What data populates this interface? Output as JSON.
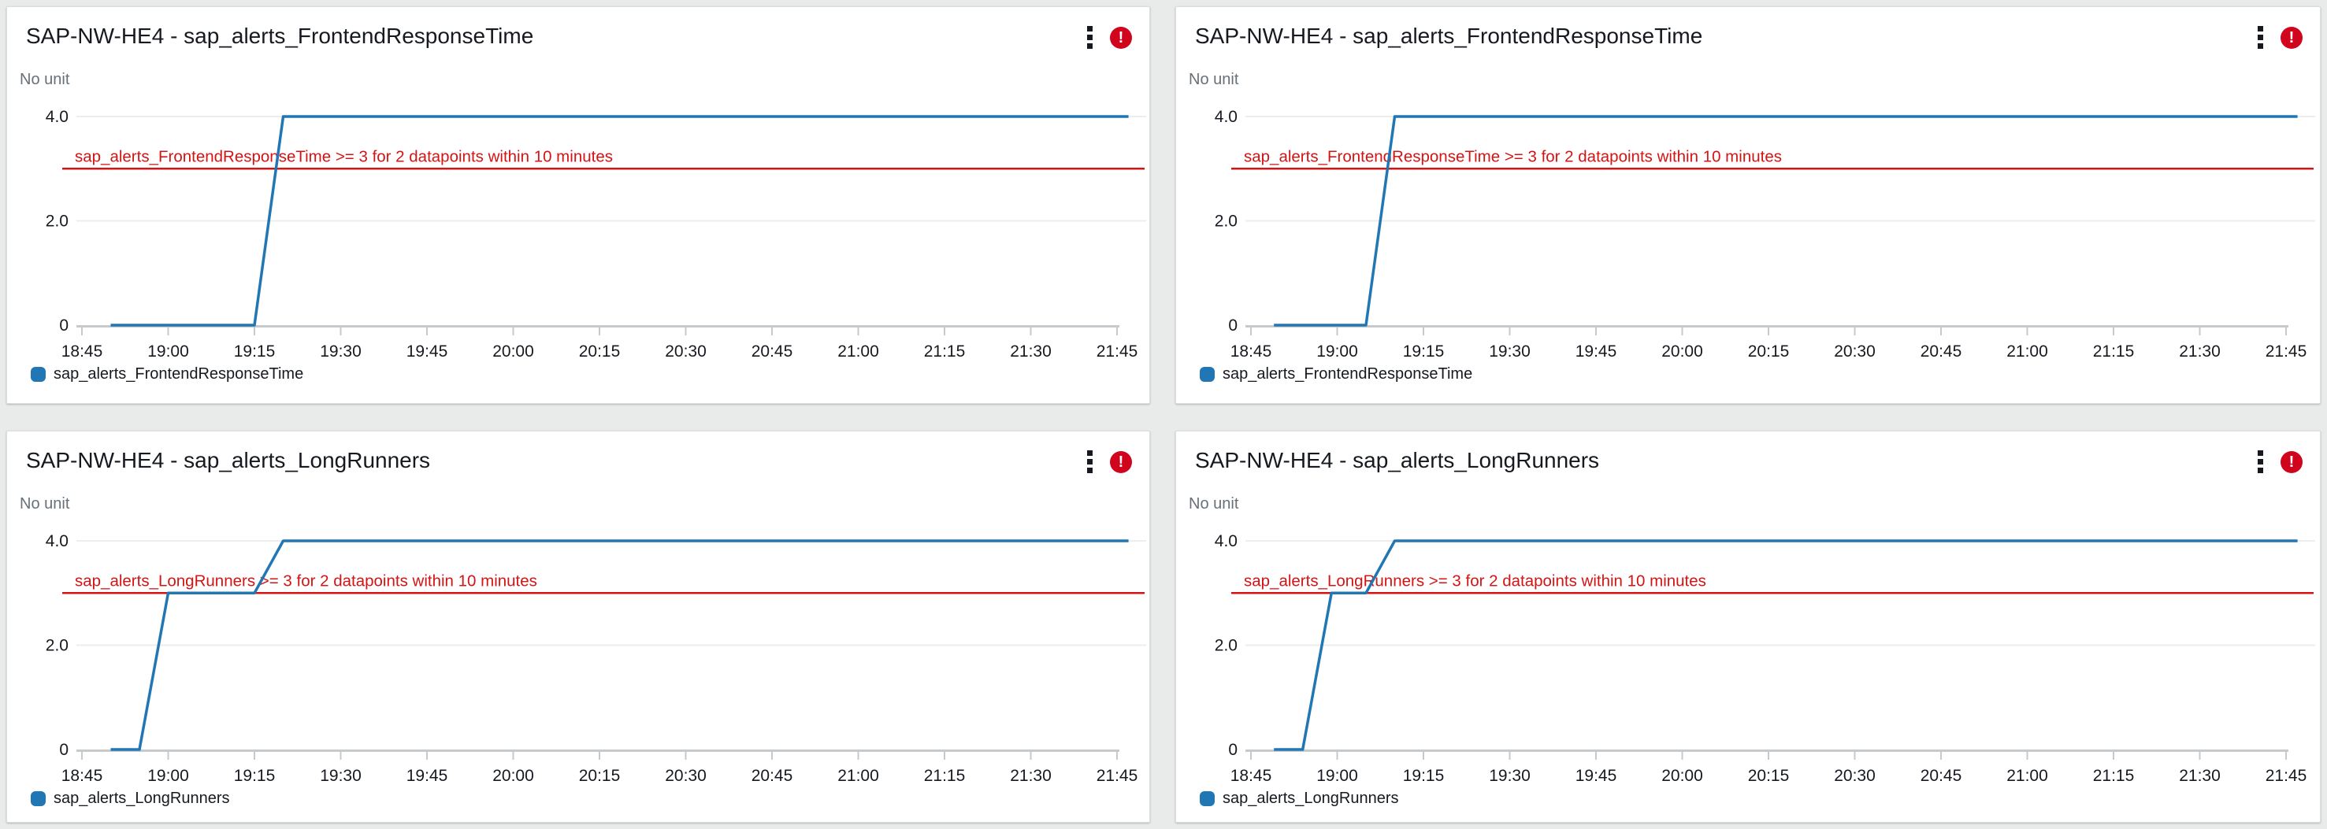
{
  "colors": {
    "page_background": "#e9ebeb",
    "panel_background": "#ffffff",
    "series_blue": "#2077b4",
    "threshold_red": "#d41414",
    "alarm_badge_red": "#d1041d",
    "grid_line": "#ededed",
    "axis_line": "#c7cacc",
    "title_text": "#16191f",
    "muted_text": "#687078"
  },
  "panels": [
    {
      "title": "SAP-NW-HE4 - sap_alerts_FrontendResponseTime",
      "unit_label": "No unit",
      "menu_icon": "kebab-menu-icon",
      "alarm_icon": "alarm-exclamation-icon",
      "alarm_glyph": "!",
      "legend_label": "sap_alerts_FrontendResponseTime"
    },
    {
      "title": "SAP-NW-HE4 - sap_alerts_FrontendResponseTime",
      "unit_label": "No unit",
      "menu_icon": "kebab-menu-icon",
      "alarm_icon": "alarm-exclamation-icon",
      "alarm_glyph": "!",
      "legend_label": "sap_alerts_FrontendResponseTime"
    },
    {
      "title": "SAP-NW-HE4 - sap_alerts_LongRunners",
      "unit_label": "No unit",
      "menu_icon": "kebab-menu-icon",
      "alarm_icon": "alarm-exclamation-icon",
      "alarm_glyph": "!",
      "legend_label": "sap_alerts_LongRunners"
    },
    {
      "title": "SAP-NW-HE4 - sap_alerts_LongRunners",
      "unit_label": "No unit",
      "menu_icon": "kebab-menu-icon",
      "alarm_icon": "alarm-exclamation-icon",
      "alarm_glyph": "!",
      "legend_label": "sap_alerts_LongRunners"
    }
  ],
  "chart_data": [
    {
      "type": "line",
      "title": "SAP-NW-HE4 - sap_alerts_FrontendResponseTime",
      "ylabel": "No unit",
      "ylim": [
        0,
        4.45
      ],
      "x_start_time": "18:45",
      "x_tick_interval_minutes": 15,
      "x_ticks": [
        "18:45",
        "19:00",
        "19:15",
        "19:30",
        "19:45",
        "20:00",
        "20:15",
        "20:30",
        "20:45",
        "21:00",
        "21:15",
        "21:30",
        "21:45"
      ],
      "y_tick_labels": [
        {
          "v": 0,
          "label": "0"
        },
        {
          "v": 2,
          "label": "2.0"
        },
        {
          "v": 4,
          "label": "4.0"
        }
      ],
      "grid_values": [
        2,
        4
      ],
      "threshold": {
        "value": 3,
        "label": "sap_alerts_FrontendResponseTime >= 3 for 2 datapoints within 10 minutes"
      },
      "series": [
        {
          "name": "sap_alerts_FrontendResponseTime",
          "color": "#2077b4",
          "points_minutes_value": [
            [
              5,
              0
            ],
            [
              30,
              0
            ],
            [
              35,
              4
            ],
            [
              182,
              4
            ]
          ],
          "points_time_value": [
            [
              "18:50",
              0
            ],
            [
              "19:15",
              0
            ],
            [
              "19:20",
              4
            ],
            [
              "21:47",
              4
            ]
          ]
        }
      ],
      "legend_position": "bottom"
    },
    {
      "type": "line",
      "title": "SAP-NW-HE4 - sap_alerts_FrontendResponseTime",
      "ylabel": "No unit",
      "ylim": [
        0,
        4.45
      ],
      "x_start_time": "18:45",
      "x_tick_interval_minutes": 15,
      "x_ticks": [
        "18:45",
        "19:00",
        "19:15",
        "19:30",
        "19:45",
        "20:00",
        "20:15",
        "20:30",
        "20:45",
        "21:00",
        "21:15",
        "21:30",
        "21:45"
      ],
      "y_tick_labels": [
        {
          "v": 0,
          "label": "0"
        },
        {
          "v": 2,
          "label": "2.0"
        },
        {
          "v": 4,
          "label": "4.0"
        }
      ],
      "grid_values": [
        2,
        4
      ],
      "threshold": {
        "value": 3,
        "label": "sap_alerts_FrontendResponseTime >= 3 for 2 datapoints within 10 minutes"
      },
      "series": [
        {
          "name": "sap_alerts_FrontendResponseTime",
          "color": "#2077b4",
          "points_minutes_value": [
            [
              4,
              0
            ],
            [
              20,
              0
            ],
            [
              25,
              4
            ],
            [
              182,
              4
            ]
          ],
          "points_time_value": [
            [
              "18:49",
              0
            ],
            [
              "19:05",
              0
            ],
            [
              "19:10",
              4
            ],
            [
              "21:47",
              4
            ]
          ]
        }
      ],
      "legend_position": "bottom"
    },
    {
      "type": "line",
      "title": "SAP-NW-HE4 - sap_alerts_LongRunners",
      "ylabel": "No unit",
      "ylim": [
        0,
        4.45
      ],
      "x_start_time": "18:45",
      "x_tick_interval_minutes": 15,
      "x_ticks": [
        "18:45",
        "19:00",
        "19:15",
        "19:30",
        "19:45",
        "20:00",
        "20:15",
        "20:30",
        "20:45",
        "21:00",
        "21:15",
        "21:30",
        "21:45"
      ],
      "y_tick_labels": [
        {
          "v": 0,
          "label": "0"
        },
        {
          "v": 2,
          "label": "2.0"
        },
        {
          "v": 4,
          "label": "4.0"
        }
      ],
      "grid_values": [
        2,
        4
      ],
      "threshold": {
        "value": 3,
        "label": "sap_alerts_LongRunners >= 3 for 2 datapoints within 10 minutes"
      },
      "series": [
        {
          "name": "sap_alerts_LongRunners",
          "color": "#2077b4",
          "points_minutes_value": [
            [
              5,
              0
            ],
            [
              10,
              0
            ],
            [
              15,
              3
            ],
            [
              30,
              3
            ],
            [
              35,
              4
            ],
            [
              182,
              4
            ]
          ],
          "points_time_value": [
            [
              "18:50",
              0
            ],
            [
              "18:55",
              0
            ],
            [
              "19:00",
              3
            ],
            [
              "19:15",
              3
            ],
            [
              "19:20",
              4
            ],
            [
              "21:47",
              4
            ]
          ]
        }
      ],
      "legend_position": "bottom"
    },
    {
      "type": "line",
      "title": "SAP-NW-HE4 - sap_alerts_LongRunners",
      "ylabel": "No unit",
      "ylim": [
        0,
        4.45
      ],
      "x_start_time": "18:45",
      "x_tick_interval_minutes": 15,
      "x_ticks": [
        "18:45",
        "19:00",
        "19:15",
        "19:30",
        "19:45",
        "20:00",
        "20:15",
        "20:30",
        "20:45",
        "21:00",
        "21:15",
        "21:30",
        "21:45"
      ],
      "y_tick_labels": [
        {
          "v": 0,
          "label": "0"
        },
        {
          "v": 2,
          "label": "2.0"
        },
        {
          "v": 4,
          "label": "4.0"
        }
      ],
      "grid_values": [
        2,
        4
      ],
      "threshold": {
        "value": 3,
        "label": "sap_alerts_LongRunners >= 3 for 2 datapoints within 10 minutes"
      },
      "series": [
        {
          "name": "sap_alerts_LongRunners",
          "color": "#2077b4",
          "points_minutes_value": [
            [
              4,
              0
            ],
            [
              9,
              0
            ],
            [
              14,
              3
            ],
            [
              20,
              3
            ],
            [
              25,
              4
            ],
            [
              182,
              4
            ]
          ],
          "points_time_value": [
            [
              "18:49",
              0
            ],
            [
              "18:54",
              0
            ],
            [
              "18:59",
              3
            ],
            [
              "19:05",
              3
            ],
            [
              "19:10",
              4
            ],
            [
              "21:47",
              4
            ]
          ]
        }
      ],
      "legend_position": "bottom"
    }
  ]
}
